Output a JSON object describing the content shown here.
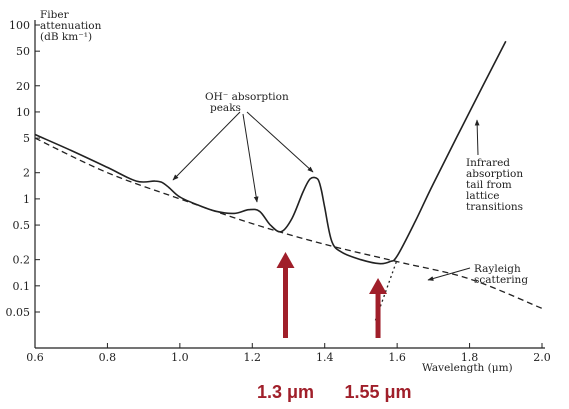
{
  "chart_data": {
    "type": "line",
    "ylabel_line1": "Fiber",
    "ylabel_line2": "attenuation",
    "ylabel_line3": "(dB km⁻¹)",
    "xlabel": "Wavelength (μm)",
    "x_scale": "linear",
    "y_scale": "log",
    "xlim": [
      0.6,
      2.0
    ],
    "ylim": [
      0.02,
      100
    ],
    "x_ticks": [
      "0.6",
      "0.8",
      "1.0",
      "1.2",
      "1.4",
      "1.6",
      "1.8",
      "2.0"
    ],
    "y_ticks": [
      {
        "label": "100",
        "value": 100
      },
      {
        "label": "50",
        "value": 50
      },
      {
        "label": "20",
        "value": 20
      },
      {
        "label": "10",
        "value": 10
      },
      {
        "label": "5",
        "value": 5
      },
      {
        "label": "2",
        "value": 2
      },
      {
        "label": "1",
        "value": 1
      },
      {
        "label": "0.5",
        "value": 0.5
      },
      {
        "label": "0.2",
        "value": 0.2
      },
      {
        "label": "0.1",
        "value": 0.1
      },
      {
        "label": "0.05",
        "value": 0.05
      }
    ],
    "series": [
      {
        "style": "solid",
        "x": [
          0.6,
          0.7,
          0.8,
          0.88,
          0.93,
          0.95,
          0.97,
          1.0,
          1.05,
          1.1,
          1.15,
          1.19,
          1.22,
          1.25,
          1.28,
          1.31,
          1.34,
          1.36,
          1.38,
          1.39,
          1.4,
          1.42,
          1.45,
          1.5,
          1.55,
          1.58,
          1.6,
          1.65,
          1.7,
          1.8,
          1.9
        ],
        "y": [
          5.5,
          3.6,
          2.3,
          1.6,
          1.6,
          1.55,
          1.35,
          1.05,
          0.85,
          0.72,
          0.68,
          0.75,
          0.72,
          0.5,
          0.42,
          0.6,
          1.2,
          1.7,
          1.7,
          1.3,
          0.8,
          0.32,
          0.24,
          0.2,
          0.18,
          0.19,
          0.22,
          0.55,
          1.5,
          10,
          65
        ]
      },
      {
        "style": "dashed",
        "label": "Rayleigh scattering",
        "x": [
          0.6,
          0.8,
          1.0,
          1.2,
          1.4,
          1.6,
          1.8,
          2.0
        ],
        "y": [
          5.0,
          2.0,
          1.0,
          0.52,
          0.3,
          0.19,
          0.12,
          0.055
        ]
      },
      {
        "style": "dotted",
        "x": [
          1.54,
          1.6
        ],
        "y": [
          0.04,
          0.2
        ]
      }
    ],
    "annotations": {
      "oh_line1": "OH⁻ absorption",
      "oh_line2": "peaks",
      "ir_line1": "Infrared",
      "ir_line2": "absorption",
      "ir_line3": "tail from",
      "ir_line4": "lattice",
      "ir_line5": "transitions",
      "ray_line1": "Rayleigh",
      "ray_line2": "scattering"
    },
    "markers": [
      {
        "label": "1.3 μm",
        "x": 1.3,
        "color": "#a01f2a"
      },
      {
        "label": "1.55 μm",
        "x": 1.55,
        "color": "#a01f2a"
      }
    ]
  }
}
